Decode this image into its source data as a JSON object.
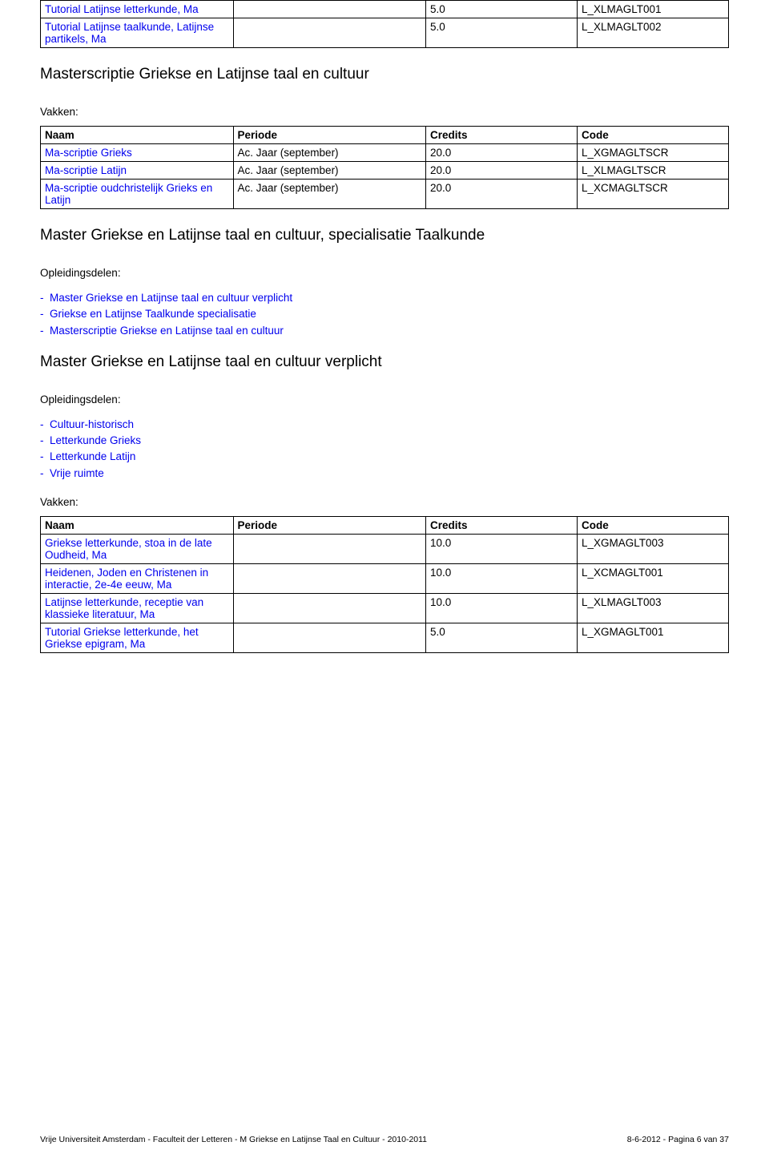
{
  "topTable": {
    "rows": [
      {
        "name": "Tutorial Latijnse letterkunde, Ma",
        "periode": "",
        "credits": "5.0",
        "code": "L_XLMAGLT001",
        "nameLink": true
      },
      {
        "name": "Tutorial Latijnse taalkunde, Latijnse partikels, Ma",
        "periode": "",
        "credits": "5.0",
        "code": "L_XLMAGLT002",
        "nameLink": true
      }
    ]
  },
  "section1": {
    "title": "Masterscriptie Griekse en Latijnse taal en cultuur",
    "vakkenLabel": "Vakken:",
    "headers": [
      "Naam",
      "Periode",
      "Credits",
      "Code"
    ],
    "rows": [
      {
        "name": "Ma-scriptie Grieks",
        "periode": "Ac. Jaar (september)",
        "credits": "20.0",
        "code": "L_XGMAGLTSCR",
        "nameLink": true
      },
      {
        "name": "Ma-scriptie Latijn",
        "periode": "Ac. Jaar (september)",
        "credits": "20.0",
        "code": "L_XLMAGLTSCR",
        "nameLink": true
      },
      {
        "name": "Ma-scriptie oudchristelijk Grieks en Latijn",
        "periode": "Ac. Jaar (september)",
        "credits": "20.0",
        "code": "L_XCMAGLTSCR",
        "nameLink": true
      }
    ]
  },
  "section2": {
    "title": "Master Griekse en Latijnse taal en cultuur, specialisatie Taalkunde",
    "opleidingLabel": "Opleidingsdelen:",
    "items": [
      "Master Griekse en Latijnse taal en cultuur verplicht",
      "Griekse en Latijnse Taalkunde specialisatie",
      "Masterscriptie Griekse en Latijnse taal en cultuur"
    ]
  },
  "section3": {
    "title": "Master Griekse en Latijnse taal en cultuur verplicht",
    "opleidingLabel": "Opleidingsdelen:",
    "items": [
      "Cultuur-historisch",
      "Letterkunde Grieks",
      "Letterkunde Latijn",
      "Vrije ruimte"
    ],
    "vakkenLabel": "Vakken:",
    "headers": [
      "Naam",
      "Periode",
      "Credits",
      "Code"
    ],
    "rows": [
      {
        "name": "Griekse letterkunde, stoa in de late Oudheid, Ma",
        "periode": "",
        "credits": "10.0",
        "code": "L_XGMAGLT003",
        "nameLink": true
      },
      {
        "name": "Heidenen, Joden en Christenen in interactie, 2e-4e eeuw, Ma",
        "periode": "",
        "credits": "10.0",
        "code": "L_XCMAGLT001",
        "nameLink": true
      },
      {
        "name": "Latijnse letterkunde, receptie van klassieke literatuur, Ma",
        "periode": "",
        "credits": "10.0",
        "code": "L_XLMAGLT003",
        "nameLink": true
      },
      {
        "name": "Tutorial Griekse letterkunde, het Griekse epigram, Ma",
        "periode": "",
        "credits": "5.0",
        "code": "L_XGMAGLT001",
        "nameLink": true
      }
    ]
  },
  "footer": {
    "left": "Vrije Universiteit Amsterdam - Faculteit der Letteren - M Griekse en Latijnse Taal en Cultuur - 2010-2011",
    "right": "8-6-2012 - Pagina 6 van 37"
  }
}
